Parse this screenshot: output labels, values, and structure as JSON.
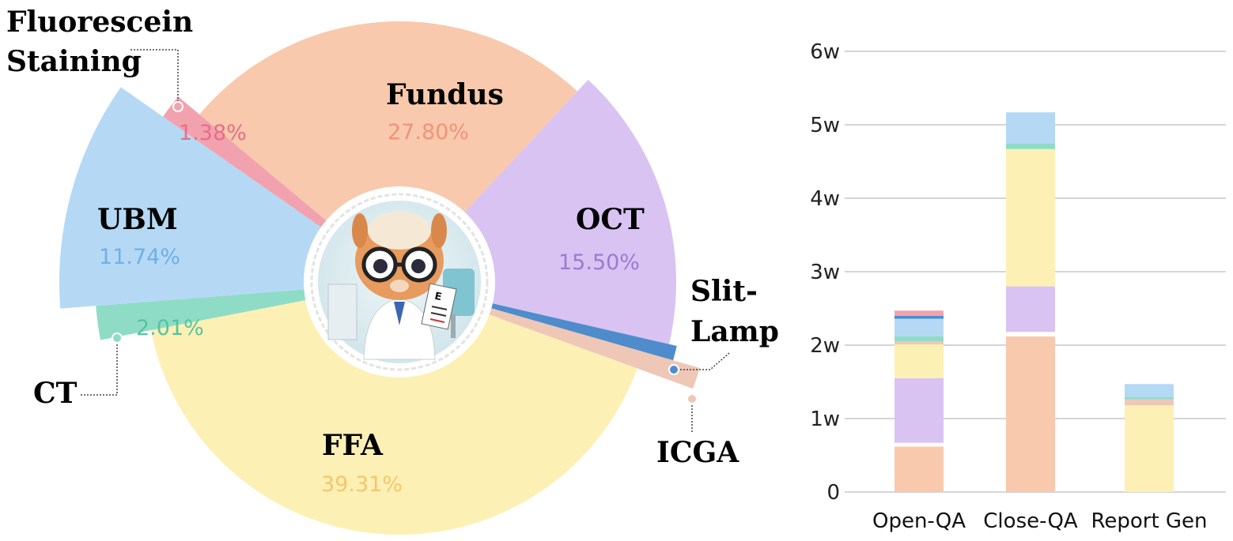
{
  "chart_data": [
    {
      "type": "pie",
      "variant": "rose",
      "slices": [
        {
          "key": "fundus",
          "label": "Fundus",
          "percent": 27.8,
          "percent_text": "27.80%",
          "color": "#f8c9ad",
          "text_color": "#f2937a"
        },
        {
          "key": "oct",
          "label": "OCT",
          "percent": 15.5,
          "percent_text": "15.50%",
          "color": "#d9c3f2",
          "text_color": "#9b7bd0"
        },
        {
          "key": "slit",
          "label": "Slit-Lamp",
          "percent": null,
          "percent_text": "",
          "color": "#4f8ccc",
          "text_color": "#4f8ccc"
        },
        {
          "key": "icga",
          "label": "ICGA",
          "percent": null,
          "percent_text": "",
          "color": "#efc7b6",
          "text_color": "#e7b19c"
        },
        {
          "key": "ffa",
          "label": "FFA",
          "percent": 39.31,
          "percent_text": "39.31%",
          "color": "#fdf0b5",
          "text_color": "#f3c76c"
        },
        {
          "key": "ct",
          "label": "CT",
          "percent": 2.01,
          "percent_text": "2.01%",
          "color": "#8fdcc6",
          "text_color": "#55c3a2"
        },
        {
          "key": "ubm",
          "label": "UBM",
          "percent": 11.74,
          "percent_text": "11.74%",
          "color": "#b5d9f4",
          "text_color": "#6fb0e6"
        },
        {
          "key": "fluor",
          "label": "Fluorescein Staining",
          "percent": 1.38,
          "percent_text": "1.38%",
          "color": "#f2a2ae",
          "text_color": "#e86e86"
        }
      ]
    },
    {
      "type": "bar",
      "stacked": true,
      "categories": [
        "Open-QA",
        "Close-QA",
        "Report Gen"
      ],
      "ylim": [
        0,
        6
      ],
      "yticks": [
        "0",
        "1w",
        "2w",
        "3w",
        "4w",
        "5w",
        "6w"
      ],
      "grid": true,
      "series": [
        {
          "key": "fundus",
          "color": "#f8c9ad",
          "values": [
            0.62,
            2.12,
            0.0
          ]
        },
        {
          "key": "ffa_gap",
          "color": "#ffffff",
          "values": [
            0.05,
            0.06,
            0.0
          ]
        },
        {
          "key": "oct",
          "color": "#d9c3f2",
          "values": [
            0.88,
            0.62,
            0.0
          ]
        },
        {
          "key": "ffa",
          "color": "#fdf0b5",
          "values": [
            0.46,
            1.87,
            1.18
          ]
        },
        {
          "key": "icga",
          "color": "#efc7b6",
          "values": [
            0.04,
            0.0,
            0.08
          ]
        },
        {
          "key": "ct",
          "color": "#8fdcc6",
          "values": [
            0.07,
            0.08,
            0.03
          ]
        },
        {
          "key": "ubm",
          "color": "#b5d9f4",
          "values": [
            0.24,
            0.42,
            0.18
          ]
        },
        {
          "key": "slit",
          "color": "#4f8ccc",
          "values": [
            0.04,
            0.0,
            0.0
          ]
        },
        {
          "key": "fluor",
          "color": "#f2a2ae",
          "values": [
            0.07,
            0.0,
            0.0
          ]
        }
      ]
    }
  ],
  "mascot": {
    "icon": "alpaca-doctor-icon"
  }
}
